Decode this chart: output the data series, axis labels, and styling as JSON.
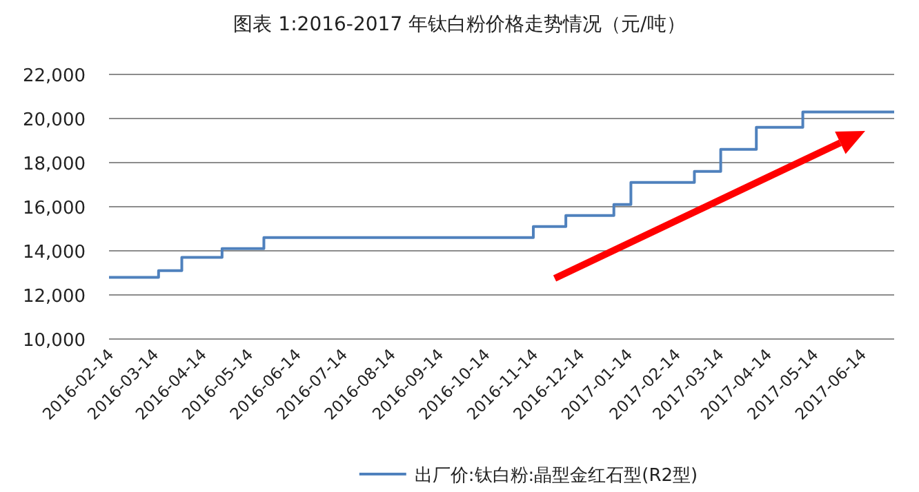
{
  "chart_data": {
    "type": "step",
    "title": "图表 1:2016-2017 年钛白粉价格走势情况（元/吨）",
    "x": [
      "2016-02-14",
      "2016-03-17",
      "2016-04-01",
      "2016-04-27",
      "2016-05-24",
      "2016-11-14",
      "2016-12-05",
      "2017-01-05",
      "2017-01-16",
      "2017-02-26",
      "2017-03-15",
      "2017-04-07",
      "2017-05-07",
      "2017-07-05"
    ],
    "series": [
      {
        "name": "出厂价:钛白粉:晶型金红石型(R2型)",
        "color": "#4f81bd",
        "values": [
          12800,
          13100,
          13700,
          14100,
          14600,
          15100,
          15600,
          16100,
          17100,
          17600,
          18600,
          19600,
          20300,
          20300
        ]
      }
    ],
    "xlim": [
      "2016-02-14",
      "2017-07-05"
    ],
    "xticks": [
      "2016-02-14",
      "2016-03-14",
      "2016-04-14",
      "2016-05-14",
      "2016-06-14",
      "2016-07-14",
      "2016-08-14",
      "2016-09-14",
      "2016-10-14",
      "2016-11-14",
      "2016-12-14",
      "2017-01-14",
      "2017-02-14",
      "2017-03-14",
      "2017-04-14",
      "2017-05-14",
      "2017-06-14"
    ],
    "ylim": [
      10000,
      22000
    ],
    "yticks": [
      {
        "value": 10000,
        "label": "10,000"
      },
      {
        "value": 12000,
        "label": "12,000"
      },
      {
        "value": 14000,
        "label": "14,000"
      },
      {
        "value": 16000,
        "label": "16,000"
      },
      {
        "value": 18000,
        "label": "18,000"
      },
      {
        "value": 20000,
        "label": "20,000"
      },
      {
        "value": 22000,
        "label": "22,000"
      }
    ],
    "grid": "y",
    "legend": "bottom",
    "line_style": "solid"
  }
}
